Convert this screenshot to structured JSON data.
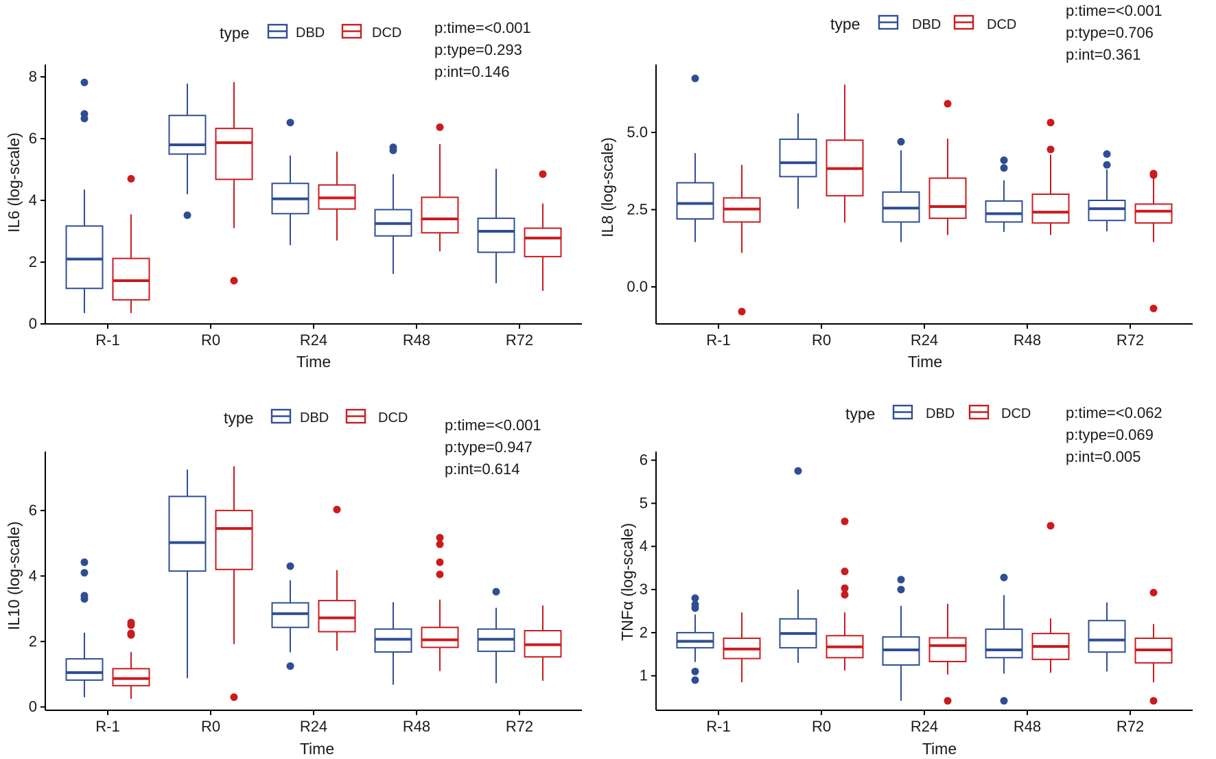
{
  "colors": {
    "DBD": "#2e4e94",
    "DCD": "#cb1b1e",
    "axis": "#000000"
  },
  "chart_data": [
    {
      "type": "box",
      "id": "il6",
      "title": "",
      "xlabel": "Time",
      "ylabel": "IL6 (log-scale)",
      "ylim": [
        0,
        8.4
      ],
      "yticks": [
        0,
        2,
        4,
        6,
        8
      ],
      "ytick_labels": [
        "0",
        "2",
        "4",
        "6",
        "8"
      ],
      "categories": [
        "R-1",
        "R0",
        "R24",
        "R48",
        "R72"
      ],
      "legend": {
        "title": "type",
        "entries": [
          "DBD",
          "DCD"
        ]
      },
      "stats": [
        "p:time=<0.001",
        "p:type=0.293",
        "p:int=0.146"
      ],
      "series": [
        {
          "name": "DBD",
          "boxes": [
            {
              "min": 0.35,
              "q1": 1.15,
              "median": 2.1,
              "q3": 3.17,
              "max": 4.35,
              "outliers": [
                6.65,
                6.8,
                7.82
              ]
            },
            {
              "min": 4.2,
              "q1": 5.5,
              "median": 5.8,
              "q3": 6.75,
              "max": 7.78,
              "outliers": [
                3.52
              ]
            },
            {
              "min": 2.55,
              "q1": 3.57,
              "median": 4.05,
              "q3": 4.55,
              "max": 5.45,
              "outliers": [
                6.52
              ]
            },
            {
              "min": 1.62,
              "q1": 2.85,
              "median": 3.25,
              "q3": 3.7,
              "max": 4.85,
              "outliers": [
                5.62,
                5.72
              ]
            },
            {
              "min": 1.32,
              "q1": 2.32,
              "median": 3.0,
              "q3": 3.42,
              "max": 5.02,
              "outliers": []
            }
          ]
        },
        {
          "name": "DCD",
          "boxes": [
            {
              "min": 0.35,
              "q1": 0.78,
              "median": 1.4,
              "q3": 2.12,
              "max": 3.55,
              "outliers": [
                4.7
              ]
            },
            {
              "min": 3.1,
              "q1": 4.68,
              "median": 5.87,
              "q3": 6.33,
              "max": 7.83,
              "outliers": [
                1.4
              ]
            },
            {
              "min": 2.7,
              "q1": 3.72,
              "median": 4.08,
              "q3": 4.5,
              "max": 5.58,
              "outliers": []
            },
            {
              "min": 2.35,
              "q1": 2.95,
              "median": 3.4,
              "q3": 4.1,
              "max": 5.82,
              "outliers": [
                6.37
              ]
            },
            {
              "min": 1.07,
              "q1": 2.18,
              "median": 2.78,
              "q3": 3.1,
              "max": 3.9,
              "outliers": [
                4.85
              ]
            }
          ]
        }
      ]
    },
    {
      "type": "box",
      "id": "il8",
      "title": "",
      "xlabel": "Time",
      "ylabel": "IL8 (log-scale)",
      "ylim": [
        -1.2,
        7.2
      ],
      "yticks": [
        0,
        2.5,
        5
      ],
      "ytick_labels": [
        "0.0",
        "2.5",
        "5.0"
      ],
      "categories": [
        "R-1",
        "R0",
        "R24",
        "R48",
        "R72"
      ],
      "legend": {
        "title": "type",
        "entries": [
          "DBD",
          "DCD"
        ]
      },
      "stats": [
        "p:time=<0.001",
        "p:type=0.706",
        "p:int=0.361"
      ],
      "series": [
        {
          "name": "DBD",
          "boxes": [
            {
              "min": 1.45,
              "q1": 2.2,
              "median": 2.7,
              "q3": 3.37,
              "max": 4.33,
              "outliers": [
                6.75
              ]
            },
            {
              "min": 2.53,
              "q1": 3.57,
              "median": 4.02,
              "q3": 4.78,
              "max": 5.62,
              "outliers": []
            },
            {
              "min": 1.45,
              "q1": 2.1,
              "median": 2.55,
              "q3": 3.07,
              "max": 4.42,
              "outliers": [
                4.7
              ]
            },
            {
              "min": 1.78,
              "q1": 2.1,
              "median": 2.37,
              "q3": 2.78,
              "max": 3.45,
              "outliers": [
                3.85,
                4.1
              ]
            },
            {
              "min": 1.8,
              "q1": 2.15,
              "median": 2.53,
              "q3": 2.8,
              "max": 3.8,
              "outliers": [
                3.95,
                4.3
              ]
            }
          ]
        },
        {
          "name": "DCD",
          "boxes": [
            {
              "min": 1.1,
              "q1": 2.1,
              "median": 2.52,
              "q3": 2.88,
              "max": 3.95,
              "outliers": [
                -0.8
              ]
            },
            {
              "min": 2.08,
              "q1": 2.95,
              "median": 3.83,
              "q3": 4.75,
              "max": 6.55,
              "outliers": []
            },
            {
              "min": 1.68,
              "q1": 2.22,
              "median": 2.6,
              "q3": 3.52,
              "max": 4.8,
              "outliers": [
                5.93
              ]
            },
            {
              "min": 1.68,
              "q1": 2.07,
              "median": 2.42,
              "q3": 3.0,
              "max": 4.28,
              "outliers": [
                4.45,
                5.32
              ]
            },
            {
              "min": 1.45,
              "q1": 2.07,
              "median": 2.45,
              "q3": 2.68,
              "max": 3.55,
              "outliers": [
                3.62,
                3.67,
                -0.7
              ]
            }
          ]
        }
      ]
    },
    {
      "type": "box",
      "id": "il10",
      "title": "",
      "xlabel": "Time",
      "ylabel": "IL10 (log-scale)",
      "ylim": [
        -0.1,
        7.8
      ],
      "yticks": [
        0,
        2,
        4,
        6
      ],
      "ytick_labels": [
        "0",
        "2",
        "4",
        "6"
      ],
      "categories": [
        "R-1",
        "R0",
        "R24",
        "R48",
        "R72"
      ],
      "legend": {
        "title": "type",
        "entries": [
          "DBD",
          "DCD"
        ]
      },
      "stats": [
        "p:time=<0.001",
        "p:type=0.947",
        "p:int=0.614"
      ],
      "series": [
        {
          "name": "DBD",
          "boxes": [
            {
              "min": 0.3,
              "q1": 0.82,
              "median": 1.05,
              "q3": 1.47,
              "max": 2.27,
              "outliers": [
                3.3,
                3.4,
                4.1,
                4.42
              ]
            },
            {
              "min": 0.88,
              "q1": 4.15,
              "median": 5.02,
              "q3": 6.43,
              "max": 7.25,
              "outliers": []
            },
            {
              "min": 1.67,
              "q1": 2.43,
              "median": 2.85,
              "q3": 3.18,
              "max": 3.87,
              "outliers": [
                1.25,
                4.3
              ]
            },
            {
              "min": 0.68,
              "q1": 1.68,
              "median": 2.07,
              "q3": 2.38,
              "max": 3.2,
              "outliers": []
            },
            {
              "min": 0.73,
              "q1": 1.7,
              "median": 2.07,
              "q3": 2.38,
              "max": 3.03,
              "outliers": [
                3.52
              ]
            }
          ]
        },
        {
          "name": "DCD",
          "boxes": [
            {
              "min": 0.25,
              "q1": 0.65,
              "median": 0.87,
              "q3": 1.17,
              "max": 1.68,
              "outliers": [
                2.2,
                2.25,
                2.5,
                2.58
              ]
            },
            {
              "min": 1.92,
              "q1": 4.2,
              "median": 5.45,
              "q3": 6.0,
              "max": 7.35,
              "outliers": [
                0.3
              ]
            },
            {
              "min": 1.72,
              "q1": 2.3,
              "median": 2.72,
              "q3": 3.25,
              "max": 4.18,
              "outliers": [
                6.03
              ]
            },
            {
              "min": 1.1,
              "q1": 1.82,
              "median": 2.05,
              "q3": 2.43,
              "max": 3.28,
              "outliers": [
                4.05,
                4.42,
                4.97,
                5.17
              ]
            },
            {
              "min": 0.8,
              "q1": 1.53,
              "median": 1.9,
              "q3": 2.33,
              "max": 3.1,
              "outliers": []
            }
          ]
        }
      ]
    },
    {
      "type": "box",
      "id": "tnfa",
      "title": "",
      "xlabel": "Time",
      "ylabel": "TNFα (log-scale)",
      "ylim": [
        0.2,
        6.2
      ],
      "yticks": [
        1,
        2,
        3,
        4,
        5,
        6
      ],
      "ytick_labels": [
        "1",
        "2",
        "3",
        "4",
        "5",
        "6"
      ],
      "categories": [
        "R-1",
        "R0",
        "R24",
        "R48",
        "R72"
      ],
      "legend": {
        "title": "type",
        "entries": [
          "DBD",
          "DCD"
        ]
      },
      "stats": [
        "p:time=<0.062",
        "p:type=0.069",
        "p:int=0.005"
      ],
      "series": [
        {
          "name": "DBD",
          "boxes": [
            {
              "min": 1.32,
              "q1": 1.65,
              "median": 1.8,
              "q3": 2.0,
              "max": 2.42,
              "outliers": [
                2.57,
                2.65,
                2.8,
                1.1,
                0.9
              ]
            },
            {
              "min": 1.3,
              "q1": 1.65,
              "median": 1.98,
              "q3": 2.32,
              "max": 3.0,
              "outliers": [
                5.75
              ]
            },
            {
              "min": 0.42,
              "q1": 1.25,
              "median": 1.6,
              "q3": 1.9,
              "max": 2.62,
              "outliers": [
                3.0,
                3.23
              ]
            },
            {
              "min": 1.05,
              "q1": 1.42,
              "median": 1.6,
              "q3": 2.08,
              "max": 2.87,
              "outliers": [
                3.28,
                0.42
              ]
            },
            {
              "min": 1.1,
              "q1": 1.55,
              "median": 1.83,
              "q3": 2.28,
              "max": 2.7,
              "outliers": []
            }
          ]
        },
        {
          "name": "DCD",
          "boxes": [
            {
              "min": 0.85,
              "q1": 1.4,
              "median": 1.62,
              "q3": 1.87,
              "max": 2.47,
              "outliers": []
            },
            {
              "min": 1.12,
              "q1": 1.42,
              "median": 1.67,
              "q3": 1.93,
              "max": 2.47,
              "outliers": [
                2.88,
                3.03,
                3.42,
                4.58
              ]
            },
            {
              "min": 1.03,
              "q1": 1.33,
              "median": 1.7,
              "q3": 1.88,
              "max": 2.67,
              "outliers": [
                0.42
              ]
            },
            {
              "min": 1.07,
              "q1": 1.38,
              "median": 1.68,
              "q3": 1.98,
              "max": 2.33,
              "outliers": [
                4.48
              ]
            },
            {
              "min": 0.85,
              "q1": 1.3,
              "median": 1.6,
              "q3": 1.87,
              "max": 2.2,
              "outliers": [
                2.93,
                0.42
              ]
            }
          ]
        }
      ]
    }
  ]
}
